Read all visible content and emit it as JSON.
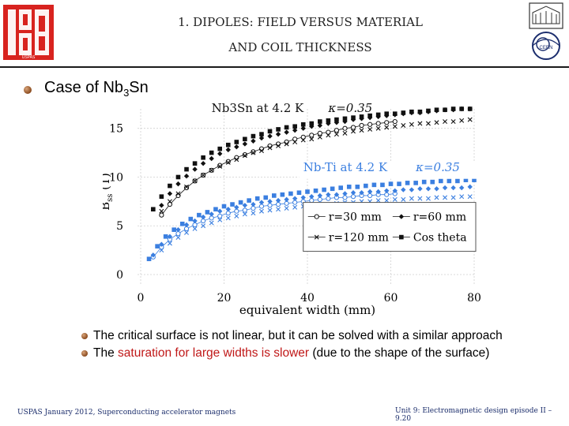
{
  "header": {
    "title_line1": "1. DIPOLES: FIELD VERSUS MATERIAL",
    "title_line2": "AND COIL THICKNESS",
    "logo_left_text": "USPAS",
    "logo_right_text": "CERN"
  },
  "heading": {
    "prefix": "Case of Nb",
    "sub": "3",
    "suffix": "Sn"
  },
  "bullets": [
    {
      "text": "The critical surface is not linear, but it can be solved with a similar approach"
    },
    {
      "pre": "The ",
      "highlight": "saturation for large widths is slower",
      "post": " (due to the shape of the surface)"
    }
  ],
  "footer": {
    "left": "USPAS January 2012,  Superconducting accelerator magnets",
    "right": "Unit 9: Electromagnetic design episode II – 9.20"
  },
  "colors": {
    "nbsn": "#111111",
    "nbti": "#3b7fe0",
    "highlight": "#c01818",
    "footer": "#1b2d6b"
  },
  "chart_data": {
    "type": "scatter",
    "xlabel": "equivalent width (mm)",
    "ylabel_main": "B",
    "ylabel_sub": "ss",
    "ylabel_unit": " (T)",
    "xlim": [
      0,
      80
    ],
    "ylim": [
      0,
      17
    ],
    "xticks": [
      0,
      20,
      40,
      60,
      80
    ],
    "yticks": [
      0,
      5,
      10,
      15
    ],
    "annotations": {
      "nbsn_label": "Nb3Sn at 4.2 K",
      "nbsn_kappa": "κ=0.35",
      "nbti_label": "Nb-Ti at 4.2 K",
      "nbti_kappa": "κ=0.35"
    },
    "legend_position": "lower-right",
    "legend": [
      {
        "name": "r=30 mm",
        "marker": "circle-open"
      },
      {
        "name": "r=60 mm",
        "marker": "diamond"
      },
      {
        "name": "r=120 mm",
        "marker": "x"
      },
      {
        "name": "Cos theta",
        "marker": "square"
      }
    ],
    "series": [
      {
        "name": "r=30 mm",
        "group": "Nb3Sn",
        "marker": "circle-open",
        "x": [
          5,
          7,
          9,
          11,
          13,
          15,
          17,
          19,
          21,
          23,
          25,
          27,
          29,
          31,
          33,
          35,
          37,
          39,
          41,
          43,
          45,
          47,
          49,
          51,
          53,
          55,
          57,
          59,
          61
        ],
        "y": [
          6.1,
          7.2,
          8.1,
          8.9,
          9.6,
          10.2,
          10.7,
          11.2,
          11.6,
          12.0,
          12.3,
          12.6,
          12.9,
          13.2,
          13.4,
          13.6,
          13.9,
          14.1,
          14.3,
          14.5,
          14.6,
          14.8,
          15.0,
          15.1,
          15.3,
          15.4,
          15.5,
          15.6,
          15.7
        ]
      },
      {
        "name": "r=60 mm",
        "group": "Nb3Sn",
        "marker": "diamond",
        "x": [
          5,
          7,
          9,
          11,
          13,
          15,
          17,
          19,
          21,
          23,
          25,
          27,
          29,
          31,
          33,
          35,
          37,
          39,
          41,
          43,
          45,
          47,
          49,
          51,
          53,
          55,
          57,
          59,
          61,
          63,
          65,
          67,
          69,
          71,
          73,
          75,
          77,
          79
        ],
        "y": [
          7.1,
          8.3,
          9.3,
          10.1,
          10.8,
          11.4,
          11.9,
          12.4,
          12.8,
          13.1,
          13.4,
          13.7,
          14.0,
          14.2,
          14.4,
          14.6,
          14.8,
          15.0,
          15.2,
          15.3,
          15.5,
          15.6,
          15.7,
          15.9,
          16.0,
          16.1,
          16.2,
          16.3,
          16.4,
          16.5,
          16.6,
          16.6,
          16.7,
          16.8,
          16.9,
          16.9,
          17.0,
          17.0
        ]
      },
      {
        "name": "r=120 mm",
        "group": "Nb3Sn",
        "marker": "x",
        "x": [
          5,
          7,
          9,
          11,
          13,
          15,
          17,
          19,
          21,
          23,
          25,
          27,
          29,
          31,
          33,
          35,
          37,
          39,
          41,
          43,
          45,
          47,
          49,
          51,
          53,
          55,
          57,
          59,
          61,
          63,
          65,
          67,
          69,
          71,
          73,
          75,
          77,
          79
        ],
        "y": [
          6.5,
          7.5,
          8.3,
          9.0,
          9.6,
          10.2,
          10.7,
          11.1,
          11.5,
          11.8,
          12.2,
          12.5,
          12.7,
          13.0,
          13.2,
          13.4,
          13.6,
          13.8,
          13.9,
          14.1,
          14.3,
          14.4,
          14.5,
          14.7,
          14.8,
          14.9,
          15.0,
          15.1,
          15.2,
          15.3,
          15.4,
          15.5,
          15.5,
          15.6,
          15.7,
          15.7,
          15.8,
          15.9
        ]
      },
      {
        "name": "Cos theta",
        "group": "Nb3Sn",
        "marker": "square",
        "x": [
          3,
          5,
          7,
          9,
          11,
          13,
          15,
          17,
          19,
          21,
          23,
          25,
          27,
          29,
          31,
          33,
          35,
          37,
          39,
          41,
          43,
          45,
          47,
          49,
          51,
          53,
          55,
          57,
          59,
          61,
          63,
          65,
          67,
          69,
          71,
          73,
          75,
          77,
          79
        ],
        "y": [
          6.7,
          8.0,
          9.1,
          10.0,
          10.8,
          11.4,
          12.0,
          12.5,
          12.9,
          13.3,
          13.6,
          13.9,
          14.2,
          14.4,
          14.7,
          14.9,
          15.1,
          15.2,
          15.4,
          15.5,
          15.7,
          15.8,
          15.9,
          16.0,
          16.1,
          16.2,
          16.3,
          16.4,
          16.5,
          16.5,
          16.6,
          16.7,
          16.7,
          16.8,
          16.9,
          16.9,
          17.0,
          17.0,
          17.0
        ]
      },
      {
        "name": "r=30 mm",
        "group": "Nb-Ti",
        "marker": "circle-open",
        "x": [
          3,
          5,
          7,
          9,
          11,
          13,
          15,
          17,
          19,
          21,
          23,
          25,
          27,
          29,
          31,
          33,
          35,
          37,
          39,
          41,
          43,
          45,
          47,
          49,
          51,
          53,
          55,
          57,
          59,
          61
        ],
        "y": [
          1.8,
          2.8,
          3.6,
          4.2,
          4.7,
          5.1,
          5.5,
          5.8,
          6.0,
          6.3,
          6.5,
          6.6,
          6.8,
          7.0,
          7.1,
          7.2,
          7.3,
          7.4,
          7.5,
          7.6,
          7.7,
          7.8,
          7.9,
          7.9,
          8.0,
          8.1,
          8.1,
          8.2,
          8.2,
          8.3
        ]
      },
      {
        "name": "r=60 mm",
        "group": "Nb-Ti",
        "marker": "diamond",
        "x": [
          3,
          5,
          7,
          9,
          11,
          13,
          15,
          17,
          19,
          21,
          23,
          25,
          27,
          29,
          31,
          33,
          35,
          37,
          39,
          41,
          43,
          45,
          47,
          49,
          51,
          53,
          55,
          57,
          59,
          61,
          63,
          65,
          67,
          69,
          71,
          73,
          75,
          77,
          79
        ],
        "y": [
          2.0,
          3.1,
          3.9,
          4.6,
          5.1,
          5.5,
          5.9,
          6.2,
          6.5,
          6.7,
          6.9,
          7.1,
          7.2,
          7.4,
          7.5,
          7.6,
          7.7,
          7.8,
          7.9,
          8.0,
          8.1,
          8.2,
          8.2,
          8.3,
          8.4,
          8.4,
          8.5,
          8.5,
          8.6,
          8.6,
          8.7,
          8.7,
          8.8,
          8.8,
          8.8,
          8.9,
          8.9,
          8.9,
          9.0
        ]
      },
      {
        "name": "r=120 mm",
        "group": "Nb-Ti",
        "marker": "x",
        "x": [
          5,
          7,
          9,
          11,
          13,
          15,
          17,
          19,
          21,
          23,
          25,
          27,
          29,
          31,
          33,
          35,
          37,
          39,
          41,
          43,
          45,
          47,
          49,
          51,
          53,
          55,
          57,
          59,
          61,
          63,
          65,
          67,
          69,
          71,
          73,
          75,
          77,
          79
        ],
        "y": [
          2.5,
          3.2,
          3.8,
          4.3,
          4.7,
          5.0,
          5.3,
          5.6,
          5.8,
          6.0,
          6.2,
          6.3,
          6.5,
          6.6,
          6.7,
          6.8,
          6.9,
          7.0,
          7.1,
          7.2,
          7.2,
          7.3,
          7.4,
          7.4,
          7.5,
          7.5,
          7.6,
          7.6,
          7.7,
          7.7,
          7.8,
          7.8,
          7.8,
          7.9,
          7.9,
          7.9,
          8.0,
          8.0
        ]
      },
      {
        "name": "Cos theta",
        "group": "Nb-Ti",
        "marker": "square",
        "x": [
          2,
          4,
          6,
          8,
          10,
          12,
          14,
          16,
          18,
          20,
          22,
          24,
          26,
          28,
          30,
          32,
          34,
          36,
          38,
          40,
          42,
          44,
          46,
          48,
          50,
          52,
          54,
          56,
          58,
          60,
          62,
          64,
          66,
          68,
          70,
          72,
          74,
          76,
          78,
          80
        ],
        "y": [
          1.6,
          2.9,
          3.9,
          4.6,
          5.2,
          5.7,
          6.1,
          6.4,
          6.7,
          7.0,
          7.2,
          7.4,
          7.6,
          7.8,
          7.9,
          8.1,
          8.2,
          8.3,
          8.4,
          8.5,
          8.6,
          8.7,
          8.8,
          8.9,
          9.0,
          9.0,
          9.1,
          9.2,
          9.2,
          9.3,
          9.3,
          9.4,
          9.4,
          9.5,
          9.5,
          9.6,
          9.6,
          9.6,
          9.7,
          9.7
        ]
      }
    ]
  }
}
